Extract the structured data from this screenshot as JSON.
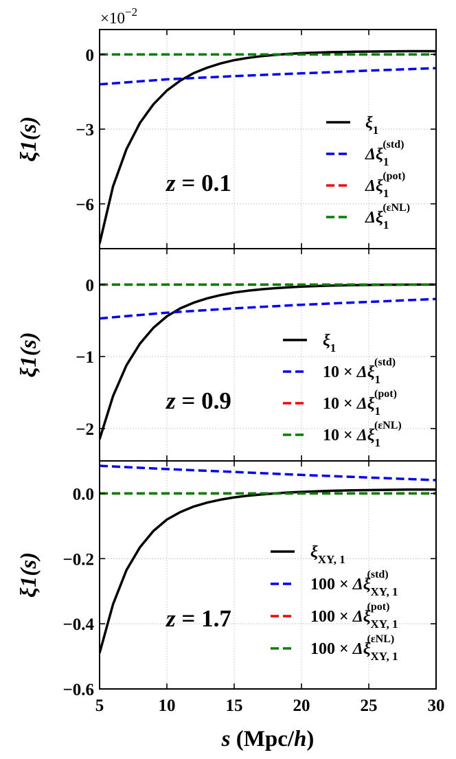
{
  "figure": {
    "multiplier": "×10",
    "multiplier_exp": "−2",
    "xlabel_var": "s",
    "xlabel_unit_open": " (Mpc/",
    "xlabel_unit_h": "h",
    "xlabel_unit_close": ")"
  },
  "chart_data": [
    {
      "type": "line",
      "ylabel": "ξ1(s)",
      "xlim": [
        5,
        30
      ],
      "ylim": [
        -7.8,
        1.0
      ],
      "x_ticks": [
        5,
        10,
        15,
        20,
        25,
        30
      ],
      "y_ticks": [
        {
          "value": 0,
          "label": "0"
        },
        {
          "value": -3,
          "label": "−3"
        },
        {
          "value": -6,
          "label": "−6"
        }
      ],
      "y_scale_note": "×10^-2",
      "annotation": {
        "var": "z",
        "eq": " = ",
        "value": "0.1"
      },
      "grid": true,
      "legend_position": "right",
      "legend": [
        {
          "prefix": "",
          "base": "ξ",
          "sub": "1",
          "sup": "",
          "style": "solid",
          "color": "#000000"
        },
        {
          "prefix": "",
          "base": "Δξ",
          "sub": "1",
          "sup": "(std)",
          "style": "dashed",
          "color": "#0000ff"
        },
        {
          "prefix": "",
          "base": "Δξ",
          "sub": "1",
          "sup": "(pot)",
          "style": "dashed",
          "color": "#ff0000"
        },
        {
          "prefix": "",
          "base": "Δξ",
          "sub": "1",
          "sup": "(εNL)",
          "style": "dashed",
          "color": "#008000"
        }
      ],
      "series": [
        {
          "name": "ξ1",
          "color": "#000000",
          "style": "solid",
          "x": [
            5,
            6,
            7,
            8,
            9,
            10,
            11,
            12,
            13,
            14,
            15,
            16,
            17,
            18,
            19,
            20,
            22,
            24,
            26,
            28,
            30
          ],
          "y": [
            -7.6,
            -5.3,
            -3.8,
            -2.75,
            -2.0,
            -1.45,
            -1.05,
            -0.75,
            -0.53,
            -0.36,
            -0.23,
            -0.14,
            -0.07,
            -0.02,
            0.02,
            0.05,
            0.09,
            0.11,
            0.12,
            0.13,
            0.13
          ]
        },
        {
          "name": "Δξ1(std)",
          "color": "#0000ff",
          "style": "dashed",
          "x": [
            5,
            10,
            15,
            20,
            25,
            30
          ],
          "y": [
            -1.2,
            -1.0,
            -0.87,
            -0.76,
            -0.65,
            -0.55
          ]
        },
        {
          "name": "Δξ1(pot)",
          "color": "#ff0000",
          "style": "dashed",
          "x": [
            5,
            30
          ],
          "y": [
            0,
            0
          ]
        },
        {
          "name": "Δξ1(εNL)",
          "color": "#008000",
          "style": "dashed",
          "x": [
            5,
            30
          ],
          "y": [
            0,
            0
          ]
        }
      ]
    },
    {
      "type": "line",
      "ylabel": "ξ1(s)",
      "xlim": [
        5,
        30
      ],
      "ylim": [
        -2.45,
        0.5
      ],
      "x_ticks": [
        5,
        10,
        15,
        20,
        25,
        30
      ],
      "y_ticks": [
        {
          "value": 0,
          "label": "0"
        },
        {
          "value": -1,
          "label": "−1"
        },
        {
          "value": -2,
          "label": "−2"
        }
      ],
      "annotation": {
        "var": "z",
        "eq": " = ",
        "value": "0.9"
      },
      "grid": true,
      "legend_position": "right",
      "legend": [
        {
          "prefix": "",
          "base": "ξ",
          "sub": "1",
          "sup": "",
          "style": "solid",
          "color": "#000000"
        },
        {
          "prefix": "10 × ",
          "base": "Δξ",
          "sub": "1",
          "sup": "(std)",
          "style": "dashed",
          "color": "#0000ff"
        },
        {
          "prefix": "10 × ",
          "base": "Δξ",
          "sub": "1",
          "sup": "(pot)",
          "style": "dashed",
          "color": "#ff0000"
        },
        {
          "prefix": "10 × ",
          "base": "Δξ",
          "sub": "1",
          "sup": "(εNL)",
          "style": "dashed",
          "color": "#008000"
        }
      ],
      "series": [
        {
          "name": "ξ1",
          "color": "#000000",
          "style": "solid",
          "x": [
            5,
            6,
            7,
            8,
            9,
            10,
            11,
            12,
            13,
            14,
            15,
            16,
            17,
            18,
            19,
            20,
            22,
            24,
            26,
            28,
            30
          ],
          "y": [
            -2.15,
            -1.55,
            -1.12,
            -0.82,
            -0.6,
            -0.44,
            -0.33,
            -0.25,
            -0.19,
            -0.145,
            -0.11,
            -0.085,
            -0.065,
            -0.05,
            -0.038,
            -0.028,
            -0.015,
            -0.007,
            -0.002,
            0.0,
            0.002
          ]
        },
        {
          "name": "10×Δξ1(std)",
          "color": "#0000ff",
          "style": "dashed",
          "x": [
            5,
            10,
            15,
            20,
            25,
            30
          ],
          "y": [
            -0.47,
            -0.39,
            -0.33,
            -0.28,
            -0.24,
            -0.2
          ]
        },
        {
          "name": "10×Δξ1(pot)",
          "color": "#ff0000",
          "style": "dashed",
          "x": [
            5,
            30
          ],
          "y": [
            0,
            0
          ]
        },
        {
          "name": "10×Δξ1(εNL)",
          "color": "#008000",
          "style": "dashed",
          "x": [
            5,
            30
          ],
          "y": [
            0,
            0
          ]
        }
      ]
    },
    {
      "type": "line",
      "ylabel": "ξ1(s)",
      "xlim": [
        5,
        30
      ],
      "ylim": [
        -0.6,
        0.1
      ],
      "x_ticks": [
        5,
        10,
        15,
        20,
        25,
        30
      ],
      "y_ticks": [
        {
          "value": 0,
          "label": "0.0"
        },
        {
          "value": -0.2,
          "label": "−0.2"
        },
        {
          "value": -0.4,
          "label": "−0.4"
        },
        {
          "value": -0.6,
          "label": "−0.6"
        }
      ],
      "annotation": {
        "var": "z",
        "eq": " = ",
        "value": "1.7"
      },
      "grid": true,
      "legend_position": "right",
      "legend": [
        {
          "prefix": "",
          "base": "ξ",
          "sub": "XY, 1",
          "sup": "",
          "style": "solid",
          "color": "#000000"
        },
        {
          "prefix": "100 × ",
          "base": "Δξ",
          "sub": "XY, 1",
          "sup": "(std)",
          "style": "dashed",
          "color": "#0000ff"
        },
        {
          "prefix": "100 × ",
          "base": "Δξ",
          "sub": "XY, 1",
          "sup": "(pot)",
          "style": "dashed",
          "color": "#ff0000"
        },
        {
          "prefix": "100 × ",
          "base": "Δξ",
          "sub": "XY, 1",
          "sup": "(εNL)",
          "style": "dashed",
          "color": "#008000"
        }
      ],
      "series": [
        {
          "name": "ξXY,1",
          "color": "#000000",
          "style": "solid",
          "x": [
            5,
            6,
            7,
            8,
            9,
            10,
            11,
            12,
            13,
            14,
            15,
            16,
            17,
            18,
            19,
            20,
            22,
            24,
            26,
            28,
            30
          ],
          "y": [
            -0.49,
            -0.34,
            -0.235,
            -0.165,
            -0.115,
            -0.08,
            -0.057,
            -0.04,
            -0.028,
            -0.019,
            -0.012,
            -0.007,
            -0.003,
            0.0,
            0.003,
            0.005,
            0.008,
            0.01,
            0.011,
            0.012,
            0.012
          ]
        },
        {
          "name": "100×ΔξXY,1(std)",
          "color": "#0000ff",
          "style": "dashed",
          "x": [
            5,
            10,
            15,
            20,
            25,
            30
          ],
          "y": [
            0.085,
            0.075,
            0.066,
            0.057,
            0.049,
            0.041
          ]
        },
        {
          "name": "100×ΔξXY,1(pot)",
          "color": "#ff0000",
          "style": "dashed",
          "x": [
            5,
            30
          ],
          "y": [
            0,
            0
          ]
        },
        {
          "name": "100×ΔξXY,1(εNL)",
          "color": "#008000",
          "style": "dashed",
          "x": [
            5,
            30
          ],
          "y": [
            0,
            0
          ]
        }
      ]
    }
  ]
}
